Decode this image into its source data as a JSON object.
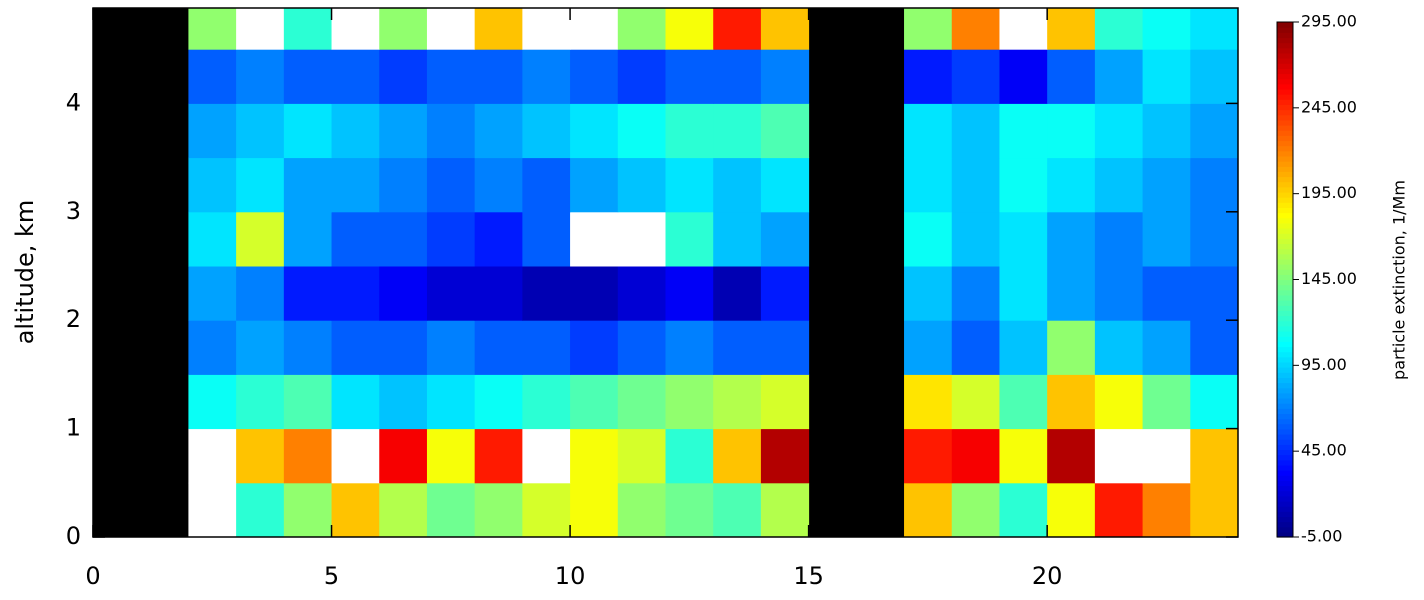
{
  "chart_data": {
    "type": "heatmap",
    "y_label": "altitude, km",
    "colorbar_label": "particle extinction, 1/Mm",
    "x_edges": [
      0,
      1,
      2,
      3,
      4,
      5,
      6,
      7,
      8,
      9,
      10,
      11,
      12,
      13,
      14,
      15,
      16,
      17,
      18,
      19,
      20,
      21,
      22,
      23,
      24
    ],
    "y_edges": [
      0,
      0.5,
      1,
      1.5,
      2,
      2.5,
      3,
      3.5,
      4,
      4.5,
      4.88
    ],
    "z": [
      [
        null,
        null,
        300,
        120,
        150,
        200,
        160,
        140,
        150,
        170,
        180,
        150,
        140,
        130,
        160,
        null,
        null,
        200,
        150,
        120,
        180,
        250,
        220,
        200
      ],
      [
        null,
        null,
        320,
        200,
        220,
        300,
        260,
        180,
        250,
        300,
        180,
        170,
        120,
        200,
        280,
        null,
        null,
        250,
        260,
        180,
        280,
        300,
        320,
        200
      ],
      [
        null,
        null,
        110,
        120,
        130,
        100,
        90,
        100,
        110,
        120,
        130,
        140,
        150,
        160,
        170,
        null,
        null,
        190,
        170,
        130,
        200,
        180,
        140,
        110
      ],
      [
        null,
        null,
        70,
        80,
        70,
        60,
        60,
        70,
        60,
        60,
        50,
        60,
        70,
        60,
        60,
        null,
        null,
        80,
        60,
        90,
        150,
        90,
        80,
        60
      ],
      [
        null,
        null,
        80,
        70,
        40,
        40,
        30,
        20,
        20,
        10,
        10,
        20,
        30,
        10,
        40,
        null,
        null,
        90,
        70,
        100,
        80,
        70,
        60,
        60
      ],
      [
        null,
        null,
        100,
        170,
        80,
        60,
        60,
        50,
        40,
        60,
        300,
        300,
        120,
        90,
        80,
        null,
        null,
        110,
        90,
        100,
        80,
        70,
        80,
        70
      ],
      [
        null,
        null,
        90,
        100,
        80,
        80,
        70,
        60,
        70,
        60,
        80,
        90,
        100,
        90,
        100,
        null,
        null,
        100,
        90,
        110,
        100,
        90,
        80,
        70
      ],
      [
        null,
        null,
        80,
        90,
        100,
        90,
        80,
        70,
        80,
        90,
        100,
        110,
        120,
        120,
        130,
        null,
        null,
        100,
        90,
        110,
        110,
        100,
        90,
        80
      ],
      [
        null,
        null,
        60,
        70,
        60,
        60,
        50,
        60,
        60,
        70,
        60,
        50,
        60,
        60,
        70,
        null,
        null,
        40,
        50,
        30,
        60,
        80,
        100,
        90
      ],
      [
        null,
        null,
        150,
        300,
        120,
        300,
        150,
        300,
        200,
        300,
        300,
        150,
        180,
        250,
        200,
        null,
        null,
        150,
        220,
        300,
        200,
        120,
        110,
        100
      ]
    ],
    "xlim": [
      0,
      24
    ],
    "xticks": [
      0,
      5,
      10,
      15,
      20
    ],
    "ylim": [
      0,
      4.88
    ],
    "yticks": [
      0,
      1,
      2,
      3,
      4
    ],
    "zlim": [
      -5,
      295
    ],
    "zticks": [
      {
        "value": -5,
        "label": "-5.00"
      },
      {
        "value": 45,
        "label": "45.00"
      },
      {
        "value": 95,
        "label": "95.00"
      },
      {
        "value": 145,
        "label": "145.00"
      },
      {
        "value": 195,
        "label": "195.00"
      },
      {
        "value": 245,
        "label": "245.00"
      },
      {
        "value": 295,
        "label": "295.00"
      }
    ],
    "colormap": "jet",
    "missing_color": "#000000",
    "over_color": "#ffffff"
  }
}
